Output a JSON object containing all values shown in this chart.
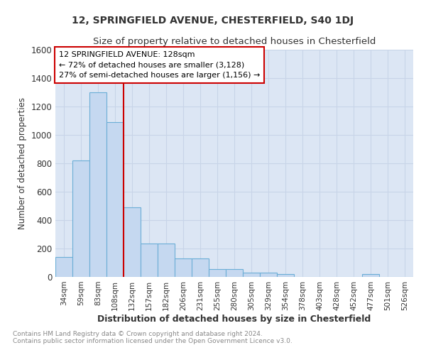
{
  "title1": "12, SPRINGFIELD AVENUE, CHESTERFIELD, S40 1DJ",
  "title2": "Size of property relative to detached houses in Chesterfield",
  "xlabel": "Distribution of detached houses by size in Chesterfield",
  "ylabel": "Number of detached properties",
  "categories": [
    "34sqm",
    "59sqm",
    "83sqm",
    "108sqm",
    "132sqm",
    "157sqm",
    "182sqm",
    "206sqm",
    "231sqm",
    "255sqm",
    "280sqm",
    "305sqm",
    "329sqm",
    "354sqm",
    "378sqm",
    "403sqm",
    "428sqm",
    "452sqm",
    "477sqm",
    "501sqm",
    "526sqm"
  ],
  "values": [
    140,
    820,
    1300,
    1090,
    490,
    235,
    235,
    130,
    130,
    55,
    55,
    30,
    30,
    20,
    0,
    0,
    0,
    0,
    20,
    0,
    0
  ],
  "bar_color": "#c5d8f0",
  "bar_edge_color": "#6baed6",
  "property_line_label": "12 SPRINGFIELD AVENUE: 128sqm",
  "annotation_line1": "← 72% of detached houses are smaller (3,128)",
  "annotation_line2": "27% of semi-detached houses are larger (1,156) →",
  "box_edge_color": "#cc0000",
  "ylim": [
    0,
    1600
  ],
  "yticks": [
    0,
    200,
    400,
    600,
    800,
    1000,
    1200,
    1400,
    1600
  ],
  "grid_color": "#c8d4e8",
  "background_color": "#dce6f4",
  "footer": "Contains HM Land Registry data © Crown copyright and database right 2024.\nContains public sector information licensed under the Open Government Licence v3.0."
}
